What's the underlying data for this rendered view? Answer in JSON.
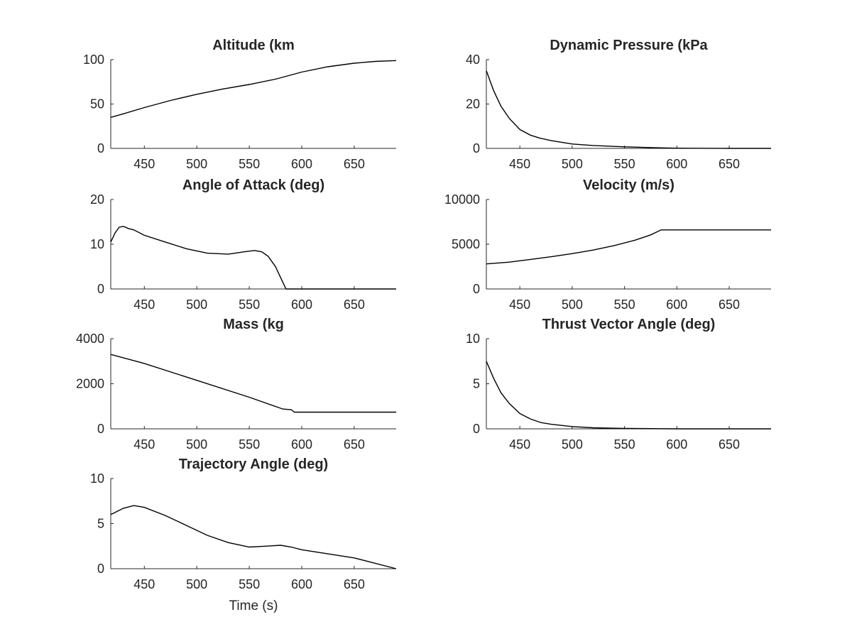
{
  "chart_data": [
    {
      "type": "line",
      "title": "Altitude (km",
      "xlabel": "",
      "ylabel": "",
      "xlim": [
        418,
        690
      ],
      "ylim": [
        0,
        100
      ],
      "xticks": [
        450,
        500,
        550,
        600,
        650
      ],
      "yticks": [
        0,
        50,
        100
      ],
      "series": [
        {
          "x": [
            418,
            430,
            450,
            475,
            500,
            525,
            550,
            575,
            600,
            625,
            650,
            670,
            690
          ],
          "y": [
            35,
            39,
            46,
            54,
            61,
            67,
            72,
            78,
            86,
            92,
            96,
            98,
            99
          ]
        }
      ]
    },
    {
      "type": "line",
      "title": "Dynamic Pressure (kPa",
      "xlabel": "",
      "ylabel": "",
      "xlim": [
        418,
        690
      ],
      "ylim": [
        0,
        40
      ],
      "xticks": [
        450,
        500,
        550,
        600,
        650
      ],
      "yticks": [
        0,
        20,
        40
      ],
      "series": [
        {
          "x": [
            418,
            425,
            432,
            440,
            450,
            460,
            470,
            480,
            500,
            520,
            550,
            580,
            600,
            650,
            690
          ],
          "y": [
            35,
            26,
            19,
            13.5,
            8.5,
            6,
            4.5,
            3.5,
            2,
            1.3,
            0.7,
            0.3,
            0.1,
            0,
            0
          ]
        }
      ]
    },
    {
      "type": "line",
      "title": "Angle of Attack (deg)",
      "xlabel": "",
      "ylabel": "",
      "xlim": [
        418,
        690
      ],
      "ylim": [
        0,
        20
      ],
      "xticks": [
        450,
        500,
        550,
        600,
        650
      ],
      "yticks": [
        0,
        10,
        20
      ],
      "series": [
        {
          "x": [
            418,
            422,
            426,
            430,
            435,
            440,
            450,
            470,
            490,
            510,
            530,
            545,
            555,
            562,
            568,
            575,
            580,
            585,
            600,
            650,
            690
          ],
          "y": [
            10.5,
            12.5,
            13.8,
            14,
            13.5,
            13.2,
            12,
            10.5,
            9,
            8,
            7.8,
            8.3,
            8.6,
            8.3,
            7.3,
            5,
            2.5,
            0,
            0,
            0,
            0
          ]
        }
      ]
    },
    {
      "type": "line",
      "title": "Velocity (m/s)",
      "xlabel": "",
      "ylabel": "",
      "xlim": [
        418,
        690
      ],
      "ylim": [
        0,
        10000
      ],
      "xticks": [
        450,
        500,
        550,
        600,
        650
      ],
      "yticks": [
        0,
        5000,
        10000
      ],
      "series": [
        {
          "x": [
            418,
            440,
            460,
            480,
            500,
            520,
            540,
            560,
            575,
            585,
            600,
            650,
            690
          ],
          "y": [
            2800,
            3000,
            3300,
            3600,
            3950,
            4350,
            4850,
            5450,
            6050,
            6600,
            6600,
            6600,
            6600
          ]
        }
      ]
    },
    {
      "type": "line",
      "title": "Mass (kg",
      "xlabel": "",
      "ylabel": "",
      "xlim": [
        418,
        690
      ],
      "ylim": [
        0,
        4000
      ],
      "xticks": [
        450,
        500,
        550,
        600,
        650
      ],
      "yticks": [
        0,
        2000,
        4000
      ],
      "series": [
        {
          "x": [
            418,
            450,
            500,
            550,
            582,
            590,
            593,
            600,
            650,
            690
          ],
          "y": [
            3300,
            2900,
            2150,
            1400,
            880,
            850,
            740,
            740,
            740,
            740
          ]
        }
      ]
    },
    {
      "type": "line",
      "title": "Thrust Vector Angle (deg)",
      "xlabel": "",
      "ylabel": "",
      "xlim": [
        418,
        690
      ],
      "ylim": [
        0,
        10
      ],
      "xticks": [
        450,
        500,
        550,
        600,
        650
      ],
      "yticks": [
        0,
        5,
        10
      ],
      "series": [
        {
          "x": [
            418,
            425,
            432,
            440,
            450,
            460,
            470,
            480,
            500,
            520,
            550,
            600,
            690
          ],
          "y": [
            7.5,
            5.6,
            4,
            2.8,
            1.7,
            1.1,
            0.7,
            0.5,
            0.25,
            0.12,
            0.05,
            0,
            0
          ]
        }
      ]
    },
    {
      "type": "line",
      "title": "Trajectory Angle (deg)",
      "xlabel": "Time (s)",
      "ylabel": "",
      "xlim": [
        418,
        690
      ],
      "ylim": [
        0,
        10
      ],
      "xticks": [
        450,
        500,
        550,
        600,
        650
      ],
      "yticks": [
        0,
        5,
        10
      ],
      "series": [
        {
          "x": [
            418,
            430,
            440,
            450,
            470,
            490,
            510,
            530,
            550,
            565,
            580,
            590,
            600,
            650,
            690
          ],
          "y": [
            6,
            6.7,
            7,
            6.8,
            5.9,
            4.8,
            3.7,
            2.9,
            2.4,
            2.5,
            2.6,
            2.4,
            2.1,
            1.2,
            0
          ]
        }
      ]
    }
  ]
}
